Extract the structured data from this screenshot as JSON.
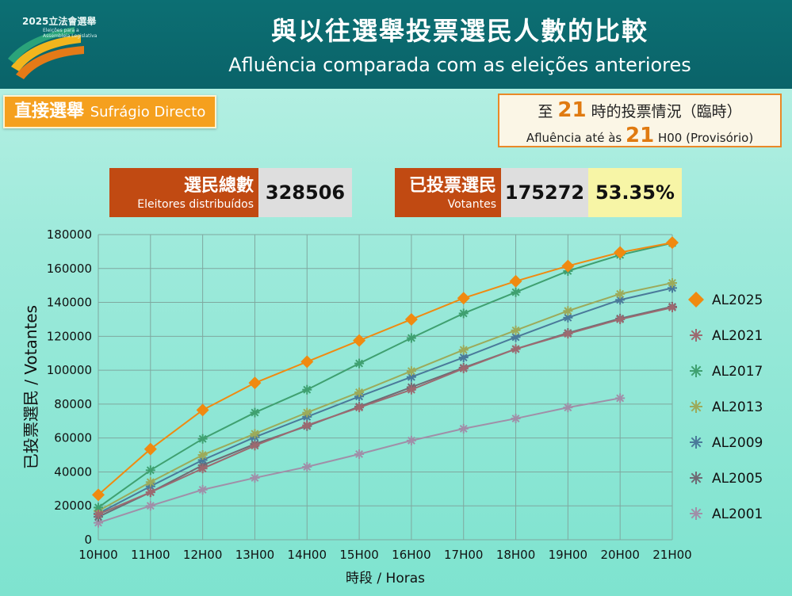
{
  "header": {
    "logo_text": "2025立法會選舉",
    "logo_sub": "Eleições para a Assembleia Legislativa",
    "title_zh": "與以往選舉投票選民人數的比較",
    "title_pt": "Afluência comparada com as eleições anteriores"
  },
  "badge": {
    "zh": "直接選舉",
    "pt": "Sufrágio Directo"
  },
  "status": {
    "l1_prefix": "至",
    "hour": "21",
    "l1_suffix": "時的投票情況（臨時）",
    "l2_prefix": "Afluência até às",
    "l2_suffix": "H00 (Provisório)"
  },
  "stats": {
    "electors_zh": "選民總數",
    "electors_pt": "Eleitores distribuídos",
    "electors_value": "328506",
    "voters_zh": "已投票選民",
    "voters_pt": "Votantes",
    "voters_value": "175272",
    "turnout": "53.35%"
  },
  "colors": {
    "AL2025": "#f08a10",
    "AL2021": "#9c6a70",
    "AL2017": "#3fa070",
    "AL2013": "#9caa5a",
    "AL2009": "#4a7a9a",
    "AL2005": "#6f6a74",
    "AL2001": "#a08fa8"
  },
  "chart_data": {
    "type": "line",
    "xlabel": "時段 / Horas",
    "ylabel": "已投票選民 / Votantes",
    "ylim": [
      0,
      180000
    ],
    "yticks": [
      "0",
      "20000",
      "40000",
      "60000",
      "80000",
      "100000",
      "120000",
      "140000",
      "160000",
      "180000"
    ],
    "categories": [
      "10H00",
      "11H00",
      "12H00",
      "13H00",
      "14H00",
      "15H00",
      "16H00",
      "17H00",
      "18H00",
      "19H00",
      "20H00",
      "21H00"
    ],
    "grid": true,
    "legend": "right",
    "series": [
      {
        "name": "AL2025",
        "marker": "diamond",
        "values": [
          26500,
          53500,
          76500,
          92500,
          105000,
          117500,
          130000,
          142500,
          152500,
          161500,
          169500,
          175272
        ]
      },
      {
        "name": "AL2021",
        "marker": "star",
        "values": [
          15000,
          28000,
          42000,
          55500,
          67500,
          78000,
          88500,
          101000,
          112500,
          121500,
          130000,
          137000
        ]
      },
      {
        "name": "AL2017",
        "marker": "star",
        "values": [
          19000,
          41000,
          59500,
          75000,
          88500,
          104000,
          119000,
          133500,
          146000,
          158500,
          168000,
          175000
        ]
      },
      {
        "name": "AL2013",
        "marker": "star",
        "values": [
          17000,
          34000,
          50000,
          62500,
          75000,
          87000,
          99500,
          112000,
          123500,
          135000,
          145000,
          151500
        ]
      },
      {
        "name": "AL2009",
        "marker": "star",
        "values": [
          15500,
          31500,
          47000,
          60500,
          72500,
          84500,
          96000,
          107500,
          119500,
          131000,
          141500,
          148500
        ]
      },
      {
        "name": "AL2005",
        "marker": "star",
        "values": [
          13500,
          28000,
          44000,
          56500,
          67000,
          78500,
          90000,
          101500,
          112500,
          122000,
          130500,
          137500
        ]
      },
      {
        "name": "AL2001",
        "marker": "star",
        "values": [
          10000,
          20000,
          29500,
          36500,
          43000,
          50500,
          58500,
          65500,
          71500,
          78000,
          83500,
          null
        ]
      }
    ]
  }
}
